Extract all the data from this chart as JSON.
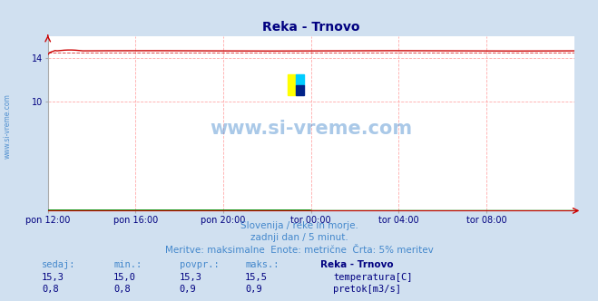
{
  "title": "Reka - Trnovo",
  "title_color": "#000080",
  "bg_color": "#d0e0f0",
  "plot_bg_color": "#ffffff",
  "grid_color": "#ffaaaa",
  "x_tick_labels": [
    "pon 12:00",
    "pon 16:00",
    "pon 20:00",
    "tor 00:00",
    "tor 04:00",
    "tor 08:00"
  ],
  "x_ticks_pos": [
    0.0,
    0.1667,
    0.3333,
    0.5,
    0.6667,
    0.8333
  ],
  "ylim": [
    0,
    16.0
  ],
  "yticks": [
    10,
    14
  ],
  "temp_color": "#cc0000",
  "flow_color": "#008800",
  "watermark_text": "www.si-vreme.com",
  "watermark_color": "#4488cc",
  "subtitle1": "Slovenija / reke in morje.",
  "subtitle2": "zadnji dan / 5 minut.",
  "subtitle3": "Meritve: maksimalne  Enote: metrične  Črta: 5% meritev",
  "subtitle_color": "#4488cc",
  "table_headers": [
    "sedaj:",
    "min.:",
    "povpr.:",
    "maks.:",
    "Reka - Trnovo"
  ],
  "table_row1": [
    "15,3",
    "15,0",
    "15,3",
    "15,5",
    "temperatura[C]"
  ],
  "table_row2": [
    "0,8",
    "0,8",
    "0,9",
    "0,9",
    "pretok[m3/s]"
  ],
  "table_header_color": "#4488cc",
  "table_data_color": "#000080",
  "table_title_color": "#000080",
  "num_points": 288,
  "temp_base": 14.65,
  "temp_dashed": 14.52,
  "flow_base": 0.05
}
